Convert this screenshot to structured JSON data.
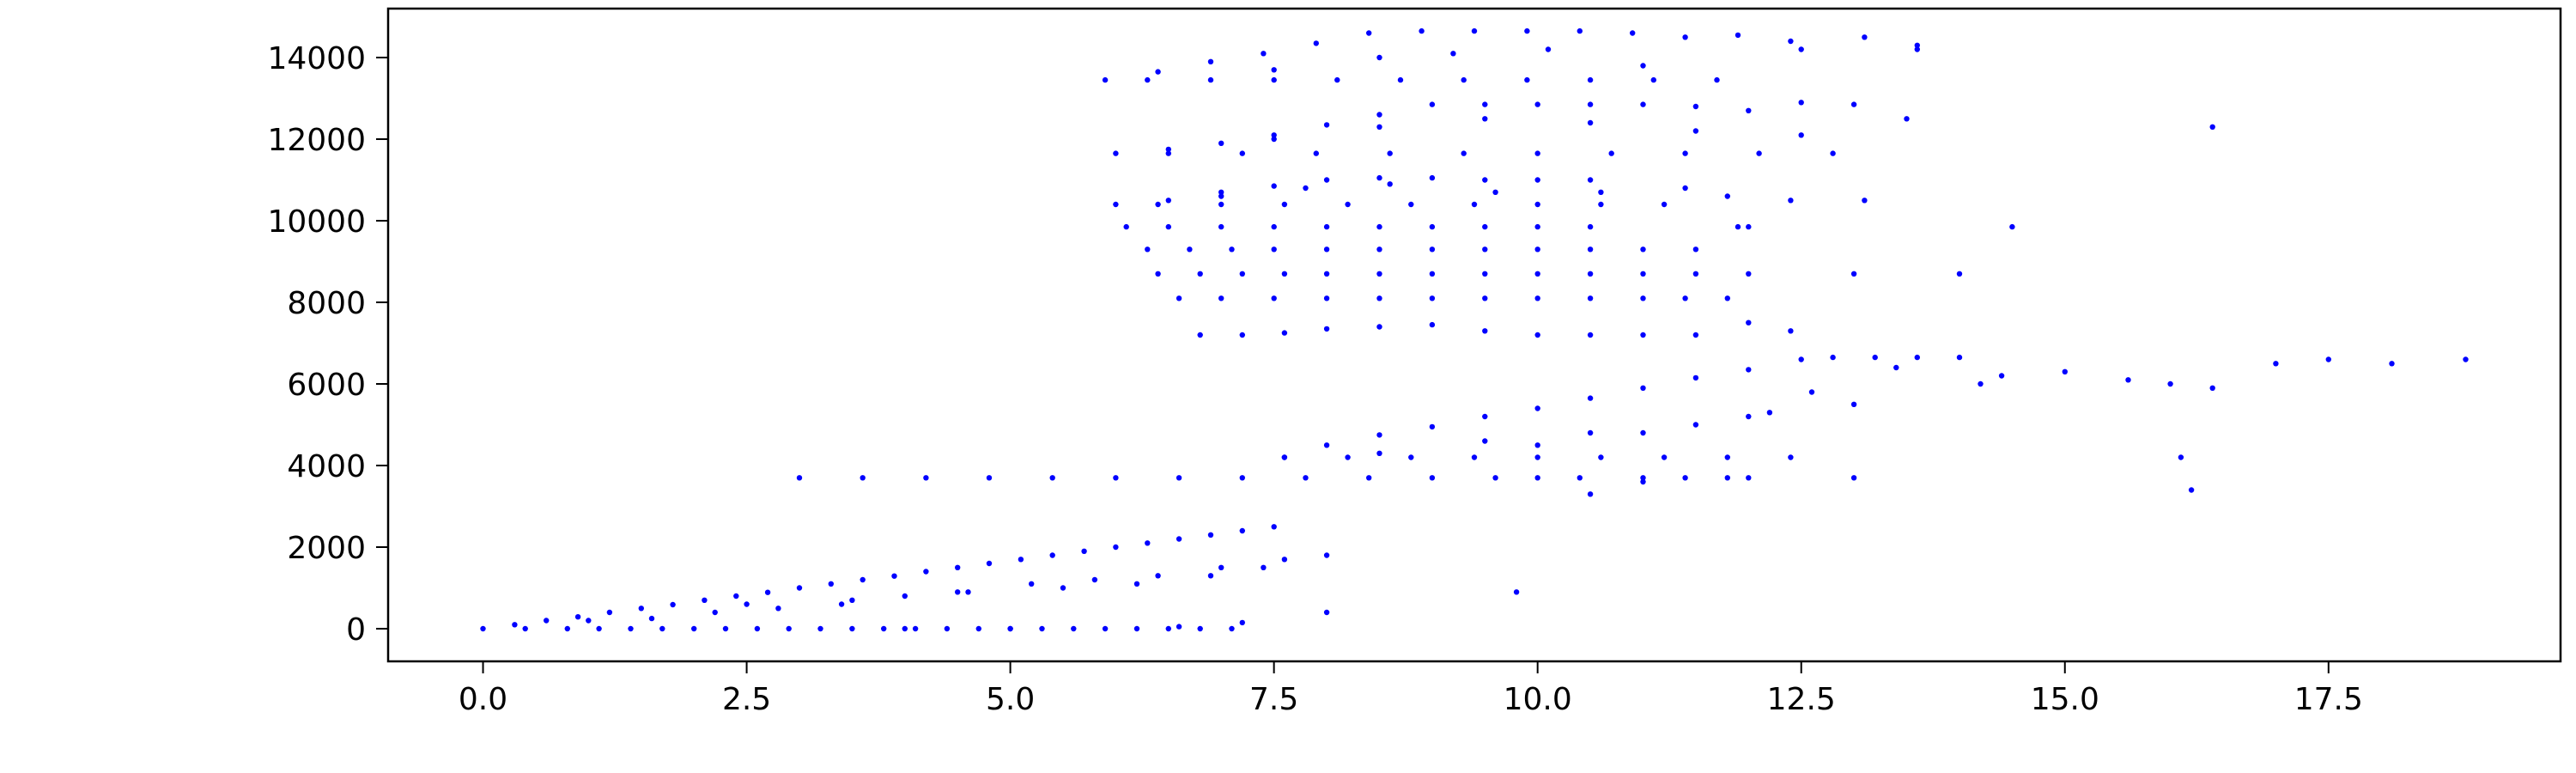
{
  "chart_data": {
    "type": "scatter",
    "title": "",
    "xlabel": "",
    "ylabel": "",
    "xlim": [
      -0.9,
      19.7
    ],
    "ylim": [
      -800,
      15200
    ],
    "x_ticks": [
      0.0,
      2.5,
      5.0,
      7.5,
      10.0,
      12.5,
      15.0,
      17.5
    ],
    "x_tick_labels": [
      "0.0",
      "2.5",
      "5.0",
      "7.5",
      "10.0",
      "12.5",
      "15.0",
      "17.5"
    ],
    "y_ticks": [
      0,
      2000,
      4000,
      6000,
      8000,
      10000,
      12000,
      14000
    ],
    "y_tick_labels": [
      "0",
      "2000",
      "4000",
      "6000",
      "8000",
      "10000",
      "12000",
      "14000"
    ],
    "grid": false,
    "legend": "none",
    "marker_color": "#0000ff",
    "series": [
      {
        "x": [
          0.0,
          0.3,
          0.6,
          0.9,
          1.2,
          1.5,
          1.8,
          2.1,
          2.4,
          2.7,
          3.0,
          3.3,
          3.6,
          3.9,
          4.2,
          4.5,
          4.8,
          5.1,
          5.4,
          5.7,
          6.0,
          6.3,
          6.6,
          6.9,
          7.2,
          7.5,
          0.4,
          0.8,
          1.1,
          1.4,
          1.7,
          2.0,
          2.3,
          2.6,
          2.9,
          3.2,
          3.5,
          3.8,
          4.1,
          4.4,
          4.7,
          5.0,
          5.3,
          5.6,
          5.9,
          6.2,
          6.5,
          6.8,
          7.1,
          1.0,
          1.6,
          2.2,
          2.8,
          3.4,
          4.0,
          4.6,
          5.2,
          5.8,
          6.4,
          7.0,
          7.6,
          3.0,
          3.6,
          4.2,
          4.8,
          5.4,
          6.0,
          6.6,
          7.2,
          7.8,
          8.4,
          9.0,
          9.6,
          10.0,
          10.4,
          11.0,
          11.4,
          11.8,
          12.0,
          2.5,
          3.5,
          4.5,
          5.5,
          6.2,
          6.9,
          7.4,
          8.0,
          9.8,
          8.0,
          7.2,
          6.6,
          5.0,
          4.0
        ],
        "y": [
          0,
          100,
          200,
          290,
          400,
          500,
          590,
          700,
          800,
          890,
          1000,
          1100,
          1200,
          1290,
          1400,
          1500,
          1600,
          1700,
          1800,
          1900,
          2000,
          2100,
          2200,
          2300,
          2400,
          2500,
          0,
          0,
          0,
          0,
          0,
          0,
          0,
          0,
          0,
          0,
          0,
          0,
          0,
          0,
          0,
          0,
          0,
          0,
          0,
          0,
          0,
          0,
          0,
          200,
          250,
          400,
          500,
          600,
          800,
          900,
          1100,
          1200,
          1300,
          1500,
          1700,
          3700,
          3700,
          3700,
          3700,
          3700,
          3700,
          3700,
          3700,
          3700,
          3700,
          3700,
          3700,
          3700,
          3700,
          3700,
          3700,
          3700,
          3700,
          600,
          700,
          900,
          1000,
          1100,
          1300,
          1500,
          1800,
          900,
          400,
          150,
          50,
          0,
          0
        ]
      },
      {
        "x": [
          7.6,
          8.0,
          8.5,
          9.0,
          9.5,
          10.0,
          10.5,
          11.0,
          11.5,
          12.0,
          12.5,
          12.8,
          13.2,
          13.6,
          14.0,
          7.6,
          8.2,
          8.8,
          9.4,
          10.0,
          10.6,
          11.2,
          11.8,
          12.4,
          8.5,
          9.5,
          10.5,
          11.5,
          12.2,
          12.6,
          13.4,
          14.4,
          15.0,
          15.6,
          16.0,
          16.4,
          17.0,
          17.5,
          18.1,
          18.8,
          10.0,
          11.0,
          12.0,
          13.0,
          14.2,
          16.1,
          16.2,
          13.0,
          11.0,
          10.5
        ],
        "y": [
          4200,
          4500,
          4750,
          4950,
          5200,
          5400,
          5650,
          5900,
          6150,
          6350,
          6600,
          6650,
          6650,
          6650,
          6650,
          4200,
          4200,
          4200,
          4200,
          4200,
          4200,
          4200,
          4200,
          4200,
          4300,
          4600,
          4800,
          5000,
          5300,
          5800,
          6400,
          6200,
          6300,
          6100,
          6000,
          5900,
          6500,
          6600,
          6500,
          6600,
          4500,
          4800,
          5200,
          5500,
          6000,
          4200,
          3400,
          3700,
          3600,
          3300
        ]
      },
      {
        "x": [
          6.8,
          7.2,
          7.6,
          8.0,
          8.5,
          9.0,
          9.5,
          10.0,
          10.5,
          11.0,
          11.5,
          12.0,
          12.4,
          6.6,
          7.0,
          7.5,
          8.0,
          8.5,
          9.0,
          9.5,
          10.0,
          10.5,
          11.0,
          11.4,
          11.8,
          6.4,
          6.8,
          7.2,
          7.6,
          8.0,
          8.5,
          9.0,
          9.5,
          10.0,
          10.5,
          11.0,
          11.5,
          12.0,
          13.0,
          14.0,
          6.3,
          6.7,
          7.1,
          7.5,
          8.0,
          8.5,
          9.0,
          9.5,
          10.0,
          10.5,
          11.0,
          11.5,
          6.1,
          6.5,
          7.0,
          7.5,
          8.0,
          8.5,
          9.0,
          9.5,
          10.0,
          10.5,
          11.9,
          12.0,
          14.5
        ],
        "y": [
          7200,
          7200,
          7250,
          7350,
          7400,
          7450,
          7300,
          7200,
          7200,
          7200,
          7200,
          7500,
          7300,
          8100,
          8100,
          8100,
          8100,
          8100,
          8100,
          8100,
          8100,
          8100,
          8100,
          8100,
          8100,
          8700,
          8700,
          8700,
          8700,
          8700,
          8700,
          8700,
          8700,
          8700,
          8700,
          8700,
          8700,
          8700,
          8700,
          8700,
          9300,
          9300,
          9300,
          9300,
          9300,
          9300,
          9300,
          9300,
          9300,
          9300,
          9300,
          9300,
          9850,
          9850,
          9850,
          9850,
          9850,
          9850,
          9850,
          9850,
          9850,
          9850,
          9850,
          9850,
          9850
        ]
      },
      {
        "x": [
          6.0,
          6.5,
          7.0,
          7.5,
          8.0,
          8.5,
          9.0,
          9.5,
          10.0,
          10.5,
          6.4,
          7.0,
          7.6,
          8.2,
          8.8,
          9.4,
          10.0,
          10.6,
          11.2,
          7.0,
          7.8,
          8.6,
          9.6,
          10.6,
          11.4,
          11.8,
          12.4,
          13.1
        ],
        "y": [
          10400,
          10500,
          10700,
          10850,
          11000,
          11050,
          11050,
          11000,
          11000,
          11000,
          10400,
          10400,
          10400,
          10400,
          10400,
          10400,
          10400,
          10400,
          10400,
          10600,
          10800,
          10900,
          10700,
          10700,
          10800,
          10600,
          10500,
          10500
        ]
      },
      {
        "x": [
          6.0,
          6.5,
          7.0,
          7.5,
          8.0,
          8.5,
          9.0,
          9.5,
          10.0,
          10.5,
          11.0,
          11.5,
          12.0,
          12.5,
          13.0,
          6.5,
          7.2,
          7.9,
          8.6,
          9.3,
          10.0,
          10.7,
          11.4,
          12.1,
          12.8,
          7.5,
          8.5,
          9.5,
          10.5,
          11.5,
          12.5,
          13.5,
          16.4
        ],
        "y": [
          11650,
          11750,
          11900,
          12100,
          12350,
          12600,
          12850,
          12850,
          12850,
          12850,
          12850,
          12800,
          12700,
          12900,
          12850,
          11650,
          11650,
          11650,
          11650,
          11650,
          11650,
          11650,
          11650,
          11650,
          11650,
          12000,
          12300,
          12500,
          12400,
          12200,
          12100,
          12500,
          12300
        ]
      },
      {
        "x": [
          5.9,
          6.4,
          6.9,
          7.4,
          7.9,
          8.4,
          8.9,
          9.4,
          9.9,
          10.4,
          10.9,
          11.4,
          11.9,
          12.4,
          13.1,
          13.6,
          6.3,
          6.9,
          7.5,
          8.1,
          8.7,
          9.3,
          9.9,
          10.5,
          11.1,
          11.7,
          7.5,
          8.5,
          9.2,
          10.1,
          11.0,
          12.5,
          13.6
        ],
        "y": [
          13450,
          13650,
          13900,
          14100,
          14350,
          14600,
          14650,
          14650,
          14650,
          14650,
          14600,
          14500,
          14550,
          14400,
          14500,
          14300,
          13450,
          13450,
          13450,
          13450,
          13450,
          13450,
          13450,
          13450,
          13450,
          13450,
          13700,
          14000,
          14100,
          14200,
          13800,
          14200,
          14200
        ]
      }
    ]
  }
}
